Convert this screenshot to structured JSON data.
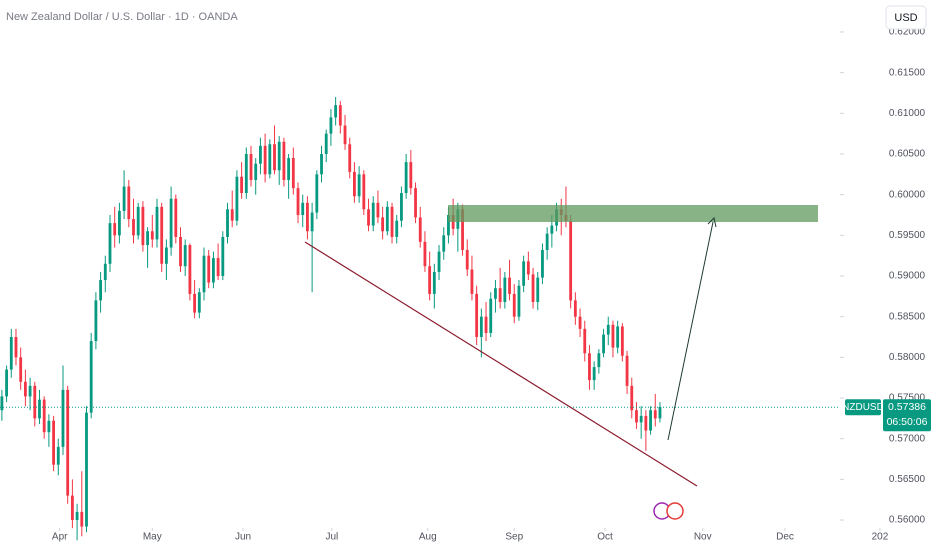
{
  "chart_data": {
    "type": "candlestick",
    "title": "New Zealand Dollar / U.S. Dollar · 1D · OANDA",
    "currency": "USD",
    "symbol": "NZDUSD",
    "last_price": 0.57386,
    "countdown": "06:50:06",
    "up_color": "#089981",
    "down_color": "#f23645",
    "xlim": [
      -0.4,
      178.3
    ],
    "ylim": [
      0.55902,
      0.62393
    ],
    "xticks": [
      {
        "value": 12.3,
        "label": "Apr"
      },
      {
        "value": 32.0,
        "label": "May"
      },
      {
        "value": 51.3,
        "label": "Jun"
      },
      {
        "value": 70.2,
        "label": "Jul"
      },
      {
        "value": 90.6,
        "label": "Aug"
      },
      {
        "value": 109.0,
        "label": "Sep"
      },
      {
        "value": 128.3,
        "label": "Oct"
      },
      {
        "value": 149.1,
        "label": "Nov"
      },
      {
        "value": 166.6,
        "label": "Dec"
      },
      {
        "value": 186.8,
        "label": "202"
      }
    ],
    "yticks": [
      {
        "value": 0.56,
        "label": "0.56000"
      },
      {
        "value": 0.565,
        "label": "0.56500"
      },
      {
        "value": 0.57,
        "label": "0.57000"
      },
      {
        "value": 0.575,
        "label": "0.57500"
      },
      {
        "value": 0.58,
        "label": "0.58000"
      },
      {
        "value": 0.585,
        "label": "0.58500"
      },
      {
        "value": 0.59,
        "label": "0.59000"
      },
      {
        "value": 0.595,
        "label": "0.59500"
      },
      {
        "value": 0.6,
        "label": "0.60000"
      },
      {
        "value": 0.605,
        "label": "0.60500"
      },
      {
        "value": 0.61,
        "label": "0.61000"
      },
      {
        "value": 0.615,
        "label": "0.61500"
      },
      {
        "value": 0.62,
        "label": "0.62000"
      }
    ],
    "candles": [
      [
        0.5735,
        0.576,
        0.5722,
        0.5752
      ],
      [
        0.5752,
        0.579,
        0.5745,
        0.5785
      ],
      [
        0.5785,
        0.5835,
        0.5775,
        0.5825
      ],
      [
        0.5825,
        0.5835,
        0.579,
        0.58
      ],
      [
        0.58,
        0.5812,
        0.576,
        0.577
      ],
      [
        0.577,
        0.5785,
        0.574,
        0.5752
      ],
      [
        0.5752,
        0.5775,
        0.5735,
        0.5765
      ],
      [
        0.5765,
        0.577,
        0.5715,
        0.5725
      ],
      [
        0.5725,
        0.576,
        0.5718,
        0.5748
      ],
      [
        0.5748,
        0.5752,
        0.57,
        0.5708
      ],
      [
        0.5708,
        0.573,
        0.569,
        0.5722
      ],
      [
        0.5722,
        0.5728,
        0.566,
        0.5668
      ],
      [
        0.5668,
        0.57,
        0.5655,
        0.569
      ],
      [
        0.569,
        0.579,
        0.568,
        0.576
      ],
      [
        0.576,
        0.5765,
        0.562,
        0.563
      ],
      [
        0.563,
        0.565,
        0.559,
        0.56
      ],
      [
        0.56,
        0.562,
        0.5575,
        0.561
      ],
      [
        0.561,
        0.566,
        0.558,
        0.5592
      ],
      [
        0.5592,
        0.574,
        0.5585,
        0.5732
      ],
      [
        0.5732,
        0.583,
        0.5725,
        0.582
      ],
      [
        0.582,
        0.588,
        0.581,
        0.587
      ],
      [
        0.587,
        0.5905,
        0.5855,
        0.5895
      ],
      [
        0.5895,
        0.5925,
        0.588,
        0.5915
      ],
      [
        0.5915,
        0.5975,
        0.5905,
        0.5965
      ],
      [
        0.5965,
        0.5985,
        0.5935,
        0.595
      ],
      [
        0.595,
        0.599,
        0.594,
        0.598
      ],
      [
        0.598,
        0.603,
        0.597,
        0.601
      ],
      [
        0.601,
        0.6018,
        0.596,
        0.597
      ],
      [
        0.597,
        0.5995,
        0.594,
        0.595
      ],
      [
        0.595,
        0.599,
        0.5945,
        0.5985
      ],
      [
        0.5985,
        0.5992,
        0.593,
        0.5938
      ],
      [
        0.5938,
        0.596,
        0.591,
        0.5955
      ],
      [
        0.5955,
        0.5975,
        0.5935,
        0.5945
      ],
      [
        0.5945,
        0.5995,
        0.5935,
        0.5985
      ],
      [
        0.5985,
        0.599,
        0.5905,
        0.5915
      ],
      [
        0.5915,
        0.5945,
        0.5895,
        0.5935
      ],
      [
        0.5935,
        0.601,
        0.5925,
        0.5995
      ],
      [
        0.5995,
        0.6,
        0.594,
        0.5948
      ],
      [
        0.5948,
        0.596,
        0.5905,
        0.5912
      ],
      [
        0.5912,
        0.5945,
        0.59,
        0.5938
      ],
      [
        0.5938,
        0.594,
        0.587,
        0.5878
      ],
      [
        0.5878,
        0.5895,
        0.5848,
        0.5855
      ],
      [
        0.5855,
        0.5885,
        0.5848,
        0.588
      ],
      [
        0.588,
        0.5935,
        0.587,
        0.5925
      ],
      [
        0.5925,
        0.5932,
        0.5885,
        0.5892
      ],
      [
        0.5892,
        0.593,
        0.5885,
        0.5922
      ],
      [
        0.5922,
        0.594,
        0.5895,
        0.59
      ],
      [
        0.59,
        0.5955,
        0.5895,
        0.5948
      ],
      [
        0.5948,
        0.599,
        0.594,
        0.5982
      ],
      [
        0.5982,
        0.6005,
        0.596,
        0.5968
      ],
      [
        0.5968,
        0.603,
        0.5962,
        0.6022
      ],
      [
        0.6022,
        0.604,
        0.5995,
        0.6002
      ],
      [
        0.6002,
        0.6058,
        0.5995,
        0.605
      ],
      [
        0.605,
        0.606,
        0.601,
        0.6018
      ],
      [
        0.6018,
        0.6045,
        0.6,
        0.6038
      ],
      [
        0.6038,
        0.607,
        0.6025,
        0.606
      ],
      [
        0.606,
        0.6075,
        0.6015,
        0.6025
      ],
      [
        0.6025,
        0.6068,
        0.602,
        0.6062
      ],
      [
        0.6062,
        0.6085,
        0.6025,
        0.603
      ],
      [
        0.603,
        0.6072,
        0.6012,
        0.6065
      ],
      [
        0.6065,
        0.607,
        0.601,
        0.6018
      ],
      [
        0.6018,
        0.605,
        0.5995,
        0.6045
      ],
      [
        0.6045,
        0.6058,
        0.6,
        0.6008
      ],
      [
        0.6008,
        0.6015,
        0.5965,
        0.5975
      ],
      [
        0.5975,
        0.6,
        0.596,
        0.599
      ],
      [
        0.599,
        0.5998,
        0.5945,
        0.5955
      ],
      [
        0.5955,
        0.599,
        0.588,
        0.5978
      ],
      [
        0.5978,
        0.603,
        0.597,
        0.6025
      ],
      [
        0.6025,
        0.606,
        0.6015,
        0.605
      ],
      [
        0.605,
        0.608,
        0.604,
        0.6075
      ],
      [
        0.6075,
        0.6105,
        0.606,
        0.6095
      ],
      [
        0.6095,
        0.612,
        0.6085,
        0.611
      ],
      [
        0.611,
        0.6115,
        0.6075,
        0.6085
      ],
      [
        0.6085,
        0.6098,
        0.6055,
        0.6062
      ],
      [
        0.6062,
        0.607,
        0.602,
        0.6028
      ],
      [
        0.6028,
        0.604,
        0.599,
        0.5998
      ],
      [
        0.5998,
        0.6035,
        0.599,
        0.6025
      ],
      [
        0.6025,
        0.603,
        0.5975,
        0.5982
      ],
      [
        0.5982,
        0.5995,
        0.5955,
        0.5962
      ],
      [
        0.5962,
        0.5998,
        0.5955,
        0.599
      ],
      [
        0.599,
        0.6005,
        0.5965,
        0.5972
      ],
      [
        0.5972,
        0.5985,
        0.5945,
        0.5955
      ],
      [
        0.5955,
        0.5992,
        0.595,
        0.5985
      ],
      [
        0.5985,
        0.599,
        0.594,
        0.5948
      ],
      [
        0.5948,
        0.5975,
        0.594,
        0.5968
      ],
      [
        0.5968,
        0.601,
        0.596,
        0.6002
      ],
      [
        0.6002,
        0.605,
        0.5995,
        0.604
      ],
      [
        0.604,
        0.6055,
        0.6,
        0.6008
      ],
      [
        0.6008,
        0.6015,
        0.5965,
        0.5972
      ],
      [
        0.5972,
        0.5985,
        0.5935,
        0.5942
      ],
      [
        0.5942,
        0.5955,
        0.5905,
        0.5912
      ],
      [
        0.5912,
        0.593,
        0.587,
        0.5878
      ],
      [
        0.5878,
        0.5915,
        0.586,
        0.5905
      ],
      [
        0.5905,
        0.5938,
        0.5895,
        0.593
      ],
      [
        0.593,
        0.596,
        0.592,
        0.595
      ],
      [
        0.595,
        0.5985,
        0.594,
        0.5975
      ],
      [
        0.5975,
        0.5995,
        0.595,
        0.5958
      ],
      [
        0.5958,
        0.599,
        0.593,
        0.5982
      ],
      [
        0.5982,
        0.5988,
        0.5925,
        0.5932
      ],
      [
        0.5932,
        0.5945,
        0.59,
        0.5908
      ],
      [
        0.5908,
        0.5925,
        0.587,
        0.5878
      ],
      [
        0.5878,
        0.5888,
        0.5815,
        0.5825
      ],
      [
        0.5825,
        0.586,
        0.58,
        0.585
      ],
      [
        0.585,
        0.5868,
        0.582,
        0.583
      ],
      [
        0.583,
        0.588,
        0.5825,
        0.5872
      ],
      [
        0.5872,
        0.5895,
        0.5855,
        0.5885
      ],
      [
        0.5885,
        0.591,
        0.586,
        0.5868
      ],
      [
        0.5868,
        0.5905,
        0.586,
        0.5898
      ],
      [
        0.5898,
        0.592,
        0.587,
        0.5878
      ],
      [
        0.5878,
        0.589,
        0.5842,
        0.585
      ],
      [
        0.585,
        0.5895,
        0.5845,
        0.5888
      ],
      [
        0.5888,
        0.5925,
        0.588,
        0.5918
      ],
      [
        0.5918,
        0.593,
        0.5895,
        0.5902
      ],
      [
        0.5902,
        0.591,
        0.586,
        0.5868
      ],
      [
        0.5868,
        0.5905,
        0.5858,
        0.5898
      ],
      [
        0.5898,
        0.594,
        0.589,
        0.5932
      ],
      [
        0.5932,
        0.596,
        0.592,
        0.5952
      ],
      [
        0.5952,
        0.5975,
        0.5935,
        0.5962
      ],
      [
        0.5962,
        0.599,
        0.5955,
        0.5982
      ],
      [
        0.5982,
        0.5995,
        0.595,
        0.5975
      ],
      [
        0.5975,
        0.601,
        0.596,
        0.5968
      ],
      [
        0.5968,
        0.5975,
        0.586,
        0.587
      ],
      [
        0.587,
        0.588,
        0.584,
        0.585
      ],
      [
        0.585,
        0.586,
        0.5825,
        0.5835
      ],
      [
        0.5835,
        0.5845,
        0.5795,
        0.5805
      ],
      [
        0.5805,
        0.5815,
        0.576,
        0.5772
      ],
      [
        0.5772,
        0.5795,
        0.576,
        0.5788
      ],
      [
        0.5788,
        0.581,
        0.578,
        0.5805
      ],
      [
        0.5805,
        0.5835,
        0.58,
        0.5828
      ],
      [
        0.5828,
        0.585,
        0.5815,
        0.584
      ],
      [
        0.584,
        0.5845,
        0.58,
        0.5812
      ],
      [
        0.5812,
        0.5845,
        0.5805,
        0.5838
      ],
      [
        0.5838,
        0.5842,
        0.5795,
        0.5802
      ],
      [
        0.5802,
        0.5808,
        0.5755,
        0.5765
      ],
      [
        0.5765,
        0.5775,
        0.5725,
        0.5735
      ],
      [
        0.5735,
        0.5745,
        0.5712,
        0.572
      ],
      [
        0.572,
        0.574,
        0.57,
        0.5728
      ],
      [
        0.5728,
        0.5735,
        0.5685,
        0.571
      ],
      [
        0.571,
        0.574,
        0.5705,
        0.5735
      ],
      [
        0.5735,
        0.5755,
        0.5715,
        0.5725
      ],
      [
        0.5725,
        0.5745,
        0.572,
        0.5739
      ]
    ]
  }
}
